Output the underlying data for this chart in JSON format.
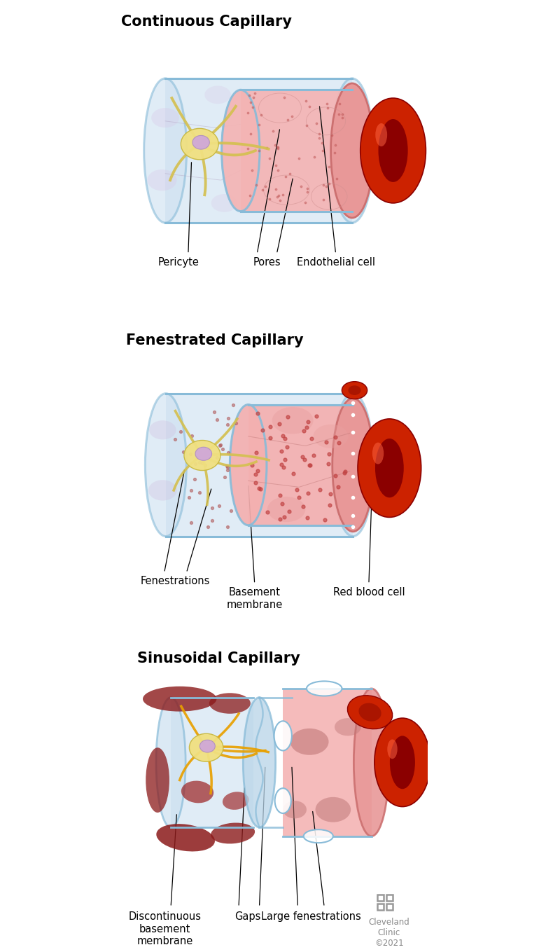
{
  "title1": "Continuous Capillary",
  "title2": "Fenestrated Capillary",
  "title3": "Sinusoidal Capillary",
  "label1a": "Pericyte",
  "label1b": "Pores",
  "label1c": "Endothelial cell",
  "label2a": "Fenestrations",
  "label2b": "Basement\nmembrane",
  "label2c": "Red blood cell",
  "label3a": "Discontinuous\nbasement\nmembrane",
  "label3b": "Gaps",
  "label3c": "Large fenestrations",
  "credit": "Cleveland\nClinic\n©2021",
  "bg_color": "#ffffff",
  "tube_blue_fill": "#cce0f0",
  "tube_blue_edge": "#88bbd8",
  "tube_pink_fill": "#f0b0b0",
  "tube_pink_edge": "#d08080",
  "rbc_red": "#cc2200",
  "rbc_dark": "#8B0000",
  "cell_yellow": "#f0e080",
  "cell_yellow_edge": "#c8b840",
  "cell_nucleus": "#d0a8d8",
  "arm_yellow": "#d4c050",
  "arm_orange": "#e8a000",
  "title_fontsize": 15,
  "label_fontsize": 10.5
}
